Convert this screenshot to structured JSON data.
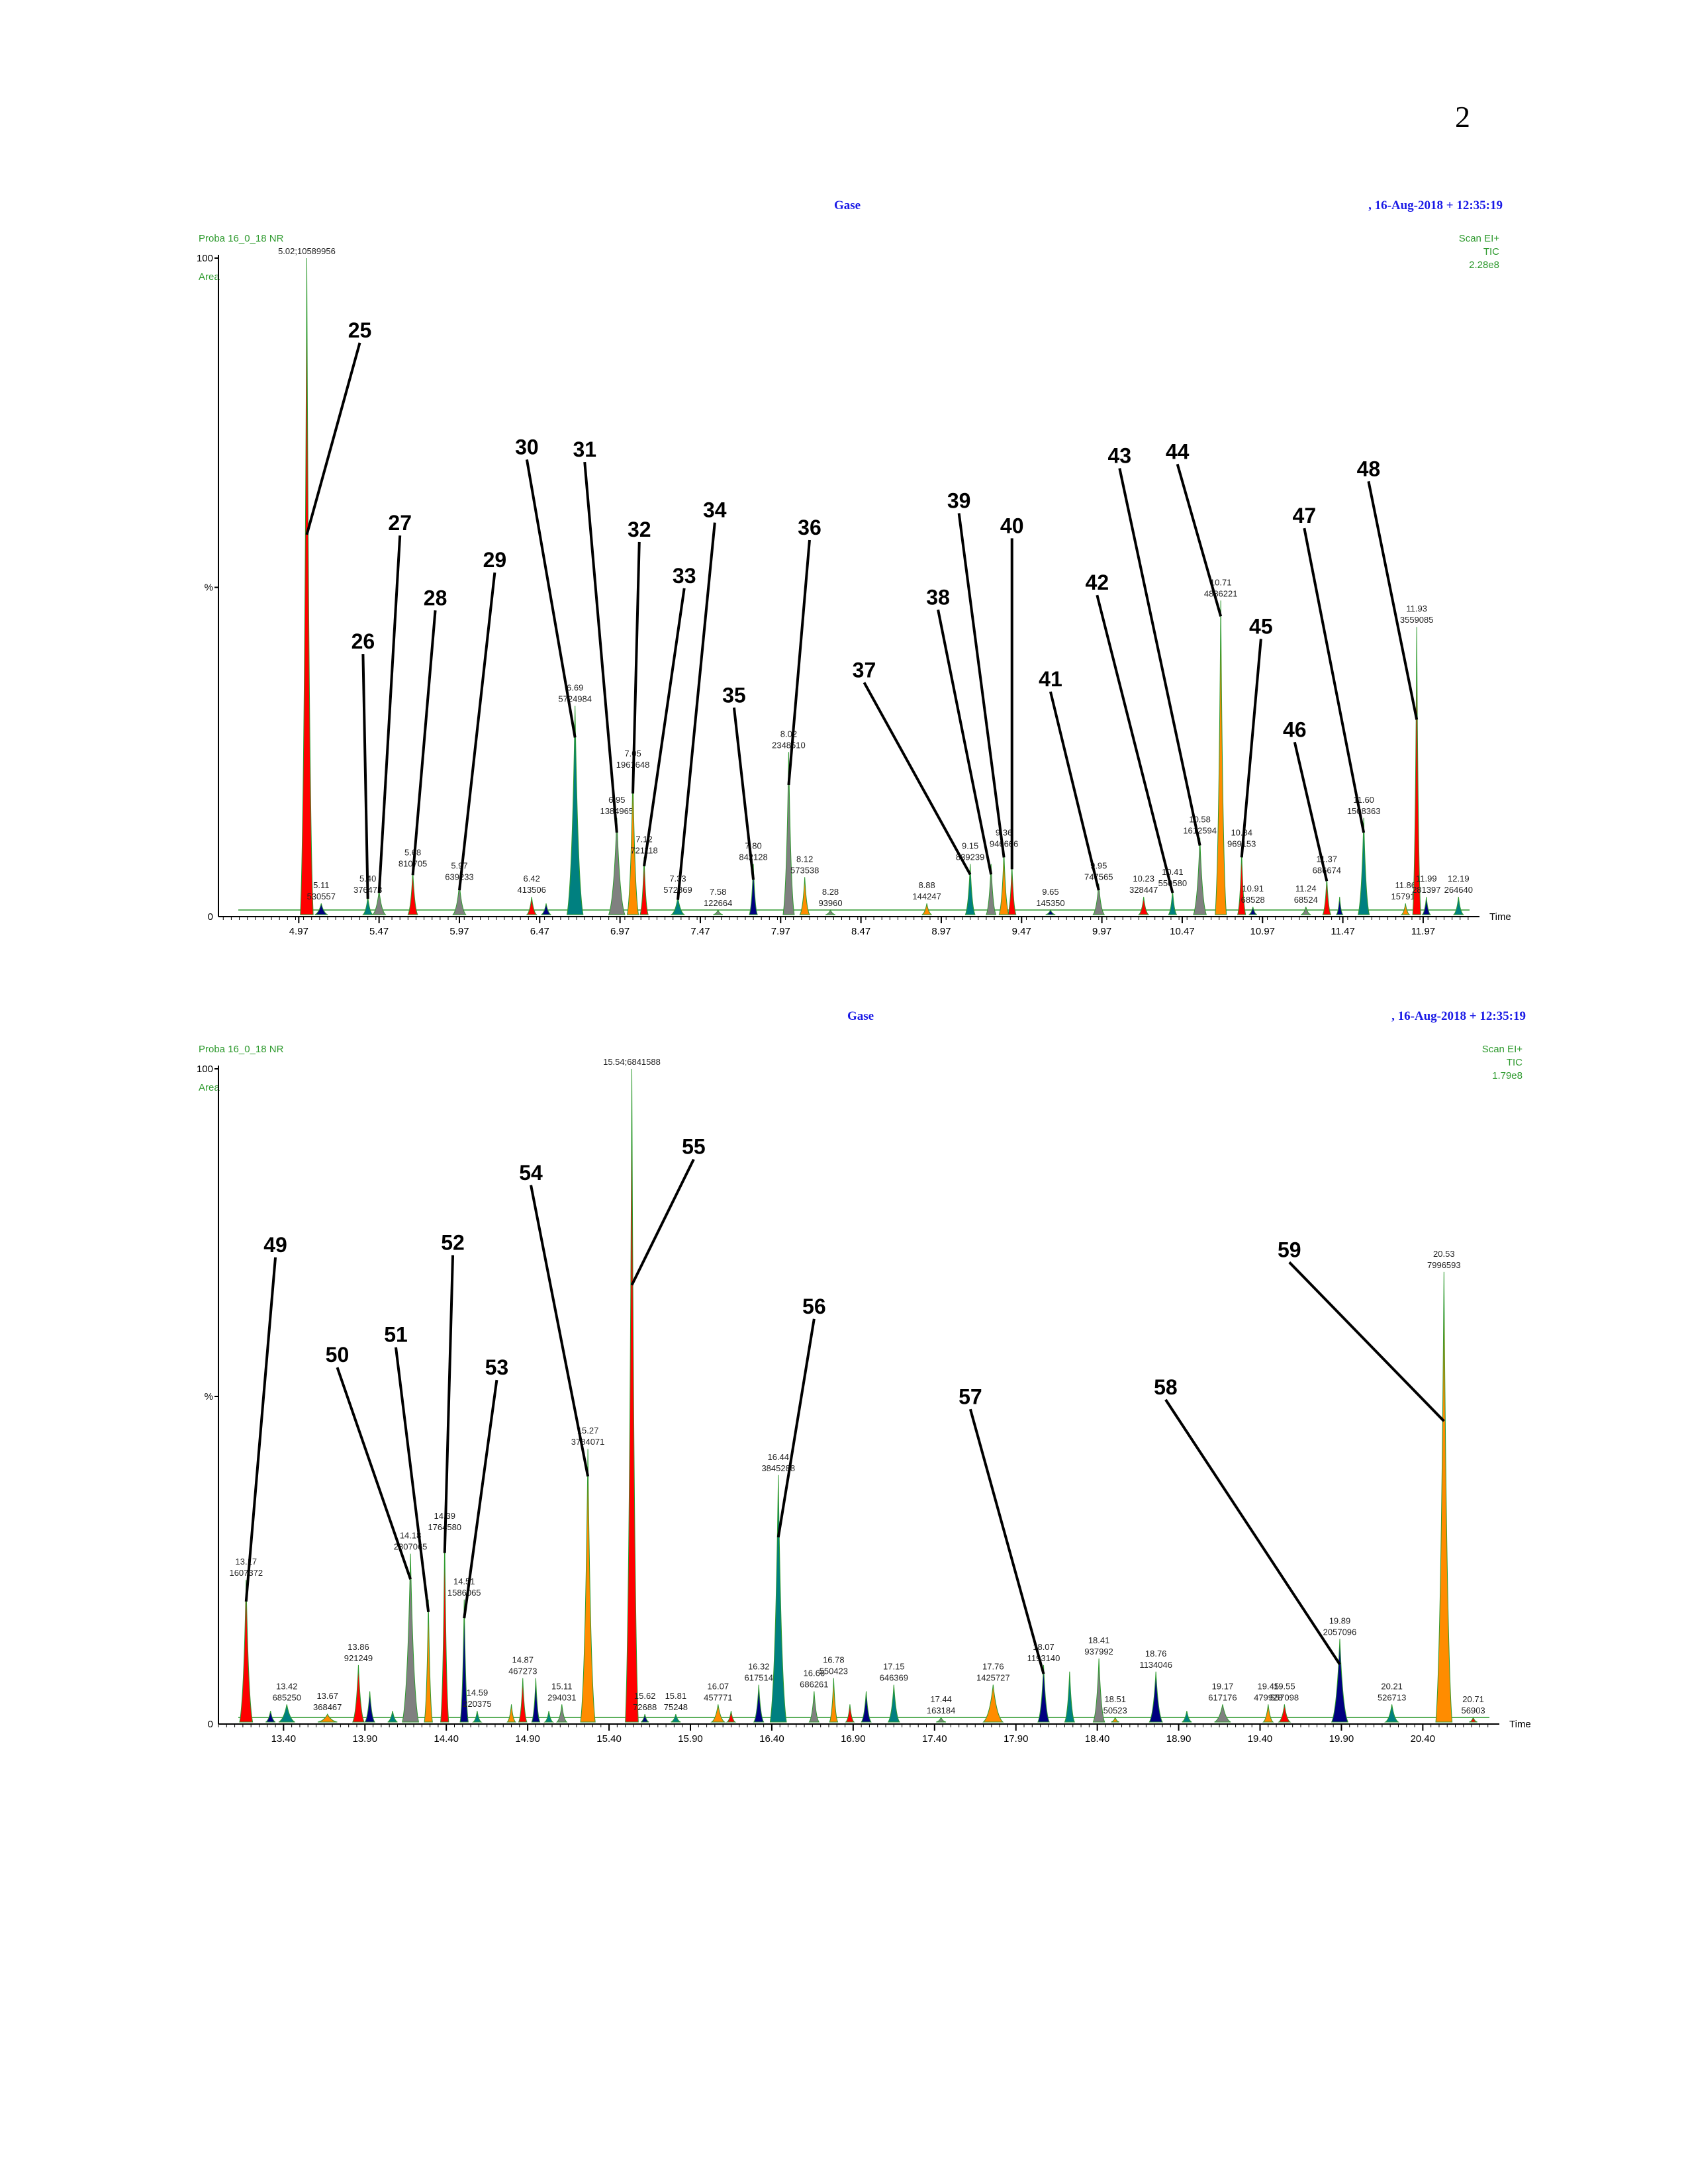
{
  "page": {
    "number": "2"
  },
  "chart_data": [
    {
      "type": "area",
      "title": "Gase",
      "date": ",  16-Aug-2018 + 12:35:19",
      "sample": "Proba 16_0_18 NR",
      "mode": "Area",
      "scan_info": [
        "Scan EI+",
        "TIC",
        "2.28e8"
      ],
      "y_top_label": "100",
      "y_mid_label": "%",
      "y_zero_label": "0",
      "xlabel": "Time",
      "xlim": [
        4.47,
        12.3
      ],
      "ylim": [
        0,
        100
      ],
      "x_ticks": [
        "4.97",
        "5.47",
        "5.97",
        "6.47",
        "6.97",
        "7.47",
        "7.97",
        "8.47",
        "8.97",
        "9.47",
        "9.97",
        "10.47",
        "10.97",
        "11.47",
        "11.97"
      ],
      "peaks": [
        {
          "rt": 5.02,
          "h": 100,
          "w": 0.08,
          "color": "#ff0000",
          "label": "5.02;10589956"
        },
        {
          "rt": 5.11,
          "h": 2,
          "w": 0.08,
          "color": "#000080",
          "label": "5.11\n530557"
        },
        {
          "rt": 5.4,
          "h": 3,
          "w": 0.06,
          "color": "#008080",
          "label": "5.40\n376473"
        },
        {
          "rt": 5.47,
          "h": 4,
          "w": 0.08,
          "color": "#808080",
          "label": ""
        },
        {
          "rt": 5.68,
          "h": 7,
          "w": 0.06,
          "color": "#ff0000",
          "label": "5.68\n810705"
        },
        {
          "rt": 5.97,
          "h": 5,
          "w": 0.08,
          "color": "#808080",
          "label": "5.97\n639233"
        },
        {
          "rt": 6.42,
          "h": 3,
          "w": 0.06,
          "color": "#ff0000",
          "label": "6.42\n413506"
        },
        {
          "rt": 6.51,
          "h": 2,
          "w": 0.06,
          "color": "#000080",
          "label": ""
        },
        {
          "rt": 6.69,
          "h": 32,
          "w": 0.1,
          "color": "#008080",
          "label": "6.69\n5724984"
        },
        {
          "rt": 6.95,
          "h": 15,
          "w": 0.1,
          "color": "#808080",
          "label": "6.95\n1384965"
        },
        {
          "rt": 7.05,
          "h": 22,
          "w": 0.07,
          "color": "#ff8c00",
          "label": "7.05\n1961648"
        },
        {
          "rt": 7.12,
          "h": 9,
          "w": 0.05,
          "color": "#ff0000",
          "label": "7.12\n721118"
        },
        {
          "rt": 7.33,
          "h": 3,
          "w": 0.08,
          "color": "#008080",
          "label": "7.33\n572869"
        },
        {
          "rt": 7.58,
          "h": 1,
          "w": 0.06,
          "color": "#808080",
          "label": "7.58\n122664"
        },
        {
          "rt": 7.8,
          "h": 8,
          "w": 0.05,
          "color": "#000080",
          "label": "7.80\n842128"
        },
        {
          "rt": 8.02,
          "h": 25,
          "w": 0.07,
          "color": "#808080",
          "label": "8.02\n2348510"
        },
        {
          "rt": 8.12,
          "h": 6,
          "w": 0.06,
          "color": "#ff8c00",
          "label": "8.12\n573538"
        },
        {
          "rt": 8.28,
          "h": 1,
          "w": 0.06,
          "color": "#808080",
          "label": "8.28\n93960"
        },
        {
          "rt": 8.88,
          "h": 2,
          "w": 0.06,
          "color": "#ff8c00",
          "label": "8.88\n144247"
        },
        {
          "rt": 9.15,
          "h": 8,
          "w": 0.06,
          "color": "#008080",
          "label": "9.15\n839239"
        },
        {
          "rt": 9.28,
          "h": 8,
          "w": 0.06,
          "color": "#808080",
          "label": ""
        },
        {
          "rt": 9.36,
          "h": 10,
          "w": 0.06,
          "color": "#ff8c00",
          "label": "9.36\n946666"
        },
        {
          "rt": 9.41,
          "h": 8,
          "w": 0.05,
          "color": "#ff0000",
          "label": ""
        },
        {
          "rt": 9.65,
          "h": 1,
          "w": 0.06,
          "color": "#000080",
          "label": "9.65\n145350"
        },
        {
          "rt": 9.95,
          "h": 5,
          "w": 0.07,
          "color": "#808080",
          "label": "9.95\n747565"
        },
        {
          "rt": 10.23,
          "h": 3,
          "w": 0.06,
          "color": "#ff0000",
          "label": "10.23\n328447"
        },
        {
          "rt": 10.41,
          "h": 4,
          "w": 0.05,
          "color": "#008080",
          "label": "10.41\n550580"
        },
        {
          "rt": 10.58,
          "h": 12,
          "w": 0.08,
          "color": "#808080",
          "label": "10.58\n1612594"
        },
        {
          "rt": 10.71,
          "h": 48,
          "w": 0.07,
          "color": "#ff8c00",
          "label": "10.71\n4886221"
        },
        {
          "rt": 10.84,
          "h": 10,
          "w": 0.05,
          "color": "#ff0000",
          "label": "10.84\n969153"
        },
        {
          "rt": 10.91,
          "h": 1.5,
          "w": 0.05,
          "color": "#000080",
          "label": "10.91\n68528"
        },
        {
          "rt": 11.24,
          "h": 1.5,
          "w": 0.06,
          "color": "#808080",
          "label": "11.24\n68524"
        },
        {
          "rt": 11.37,
          "h": 6,
          "w": 0.05,
          "color": "#ff0000",
          "label": "11.37\n686674"
        },
        {
          "rt": 11.45,
          "h": 3,
          "w": 0.04,
          "color": "#000080",
          "label": ""
        },
        {
          "rt": 11.6,
          "h": 15,
          "w": 0.07,
          "color": "#008080",
          "label": "11.60\n1508363"
        },
        {
          "rt": 11.86,
          "h": 2,
          "w": 0.05,
          "color": "#ff8c00",
          "label": "11.86\n157916"
        },
        {
          "rt": 11.93,
          "h": 44,
          "w": 0.05,
          "color": "#ff0000",
          "label": "11.93\n3559085"
        },
        {
          "rt": 11.99,
          "h": 3,
          "w": 0.05,
          "color": "#000080",
          "label": "11.99\n281397"
        },
        {
          "rt": 12.19,
          "h": 3,
          "w": 0.06,
          "color": "#008080",
          "label": "12.19\n264640"
        }
      ],
      "callouts": [
        {
          "label": "25",
          "target_rt": 5.02,
          "target_frac": 0.58,
          "dx": 0.33,
          "dy": -290
        },
        {
          "label": "26",
          "target_rt": 5.4,
          "target_frac": 0.9,
          "dx": -0.03,
          "dy": -370
        },
        {
          "label": "27",
          "target_rt": 5.47,
          "target_frac": 0.9,
          "dx": 0.13,
          "dy": -540
        },
        {
          "label": "28",
          "target_rt": 5.68,
          "target_frac": 0.9,
          "dx": 0.14,
          "dy": -400
        },
        {
          "label": "29",
          "target_rt": 5.97,
          "target_frac": 0.8,
          "dx": 0.22,
          "dy": -480
        },
        {
          "label": "30",
          "target_rt": 6.69,
          "target_frac": 0.85,
          "dx": -0.3,
          "dy": -420
        },
        {
          "label": "31",
          "target_rt": 6.95,
          "target_frac": 0.85,
          "dx": -0.2,
          "dy": -560
        },
        {
          "label": "32",
          "target_rt": 7.05,
          "target_frac": 0.85,
          "dx": 0.04,
          "dy": -380
        },
        {
          "label": "33",
          "target_rt": 7.12,
          "target_frac": 0.85,
          "dx": 0.25,
          "dy": -420
        },
        {
          "label": "34",
          "target_rt": 7.33,
          "target_frac": 0.85,
          "dx": 0.23,
          "dy": -570
        },
        {
          "label": "35",
          "target_rt": 7.8,
          "target_frac": 0.7,
          "dx": -0.12,
          "dy": -260
        },
        {
          "label": "36",
          "target_rt": 8.02,
          "target_frac": 0.8,
          "dx": 0.13,
          "dy": -370
        },
        {
          "label": "37",
          "target_rt": 9.15,
          "target_frac": 0.8,
          "dx": -0.66,
          "dy": -290
        },
        {
          "label": "38",
          "target_rt": 9.28,
          "target_frac": 0.8,
          "dx": -0.33,
          "dy": -400
        },
        {
          "label": "39",
          "target_rt": 9.36,
          "target_frac": 0.9,
          "dx": -0.28,
          "dy": -520
        },
        {
          "label": "40",
          "target_rt": 9.41,
          "target_frac": 0.9,
          "dx": 0.0,
          "dy": -500
        },
        {
          "label": "41",
          "target_rt": 9.95,
          "target_frac": 0.8,
          "dx": -0.3,
          "dy": -300
        },
        {
          "label": "42",
          "target_rt": 10.41,
          "target_frac": 0.9,
          "dx": -0.47,
          "dy": -450
        },
        {
          "label": "43",
          "target_rt": 10.58,
          "target_frac": 0.9,
          "dx": -0.5,
          "dy": -570
        },
        {
          "label": "44",
          "target_rt": 10.71,
          "target_frac": 0.95,
          "dx": -0.27,
          "dy": -230
        },
        {
          "label": "45",
          "target_rt": 10.84,
          "target_frac": 0.9,
          "dx": 0.12,
          "dy": -330
        },
        {
          "label": "46",
          "target_rt": 11.37,
          "target_frac": 0.9,
          "dx": -0.2,
          "dy": -210
        },
        {
          "label": "47",
          "target_rt": 11.6,
          "target_frac": 0.85,
          "dx": -0.37,
          "dy": -460
        },
        {
          "label": "48",
          "target_rt": 11.93,
          "target_frac": 0.68,
          "dx": -0.3,
          "dy": -360
        }
      ]
    },
    {
      "type": "area",
      "title": "Gase",
      "date": ",  16-Aug-2018 + 12:35:19",
      "sample": "Proba 16_0_18 NR",
      "mode": "Area",
      "scan_info": [
        "Scan EI+",
        "TIC",
        "1.79e8"
      ],
      "y_top_label": "100",
      "y_mid_label": "%",
      "y_zero_label": "0",
      "xlabel": "Time",
      "xlim": [
        13.0,
        20.85
      ],
      "ylim": [
        0,
        100
      ],
      "x_ticks": [
        "13.40",
        "13.90",
        "14.40",
        "14.90",
        "15.40",
        "15.90",
        "16.40",
        "16.90",
        "17.40",
        "17.90",
        "18.40",
        "18.90",
        "19.40",
        "19.90",
        "20.40"
      ],
      "peaks": [
        {
          "rt": 13.17,
          "h": 22,
          "w": 0.08,
          "color": "#ff0000",
          "label": "13.17\n1607372"
        },
        {
          "rt": 13.32,
          "h": 2,
          "w": 0.06,
          "color": "#000080",
          "label": ""
        },
        {
          "rt": 13.42,
          "h": 3,
          "w": 0.1,
          "color": "#008080",
          "label": "13.42\n685250"
        },
        {
          "rt": 13.67,
          "h": 1.5,
          "w": 0.12,
          "color": "#ff8c00",
          "label": "13.67\n368467"
        },
        {
          "rt": 13.86,
          "h": 9,
          "w": 0.07,
          "color": "#ff0000",
          "label": "13.86\n921249"
        },
        {
          "rt": 13.93,
          "h": 5,
          "w": 0.06,
          "color": "#000080",
          "label": ""
        },
        {
          "rt": 14.07,
          "h": 2,
          "w": 0.06,
          "color": "#008080",
          "label": ""
        },
        {
          "rt": 14.18,
          "h": 26,
          "w": 0.1,
          "color": "#808080",
          "label": "14.18\n2807065"
        },
        {
          "rt": 14.29,
          "h": 19,
          "w": 0.05,
          "color": "#ff8c00",
          "label": ""
        },
        {
          "rt": 14.39,
          "h": 29,
          "w": 0.05,
          "color": "#ff0000",
          "label": "14.39\n1764580"
        },
        {
          "rt": 14.51,
          "h": 19,
          "w": 0.05,
          "color": "#000080",
          "label": "14.51\n1586065"
        },
        {
          "rt": 14.59,
          "h": 2,
          "w": 0.05,
          "color": "#008080",
          "label": "14.59\n220375"
        },
        {
          "rt": 14.8,
          "h": 3,
          "w": 0.05,
          "color": "#ff8c00",
          "label": ""
        },
        {
          "rt": 14.87,
          "h": 7,
          "w": 0.05,
          "color": "#ff0000",
          "label": "14.87\n467273"
        },
        {
          "rt": 14.95,
          "h": 7,
          "w": 0.05,
          "color": "#000080",
          "label": ""
        },
        {
          "rt": 15.03,
          "h": 2,
          "w": 0.05,
          "color": "#008080",
          "label": ""
        },
        {
          "rt": 15.11,
          "h": 3,
          "w": 0.06,
          "color": "#808080",
          "label": "15.11\n294031"
        },
        {
          "rt": 15.27,
          "h": 42,
          "w": 0.09,
          "color": "#ff8c00",
          "label": "15.27\n3784071"
        },
        {
          "rt": 15.54,
          "h": 100,
          "w": 0.08,
          "color": "#ff0000",
          "label": "15.54;6841588"
        },
        {
          "rt": 15.62,
          "h": 1.5,
          "w": 0.05,
          "color": "#000080",
          "label": "15.62\n72688"
        },
        {
          "rt": 15.81,
          "h": 1.5,
          "w": 0.06,
          "color": "#008080",
          "label": "15.81\n75248"
        },
        {
          "rt": 16.07,
          "h": 3,
          "w": 0.08,
          "color": "#ff8c00",
          "label": "16.07\n457771"
        },
        {
          "rt": 16.15,
          "h": 2,
          "w": 0.05,
          "color": "#ff0000",
          "label": ""
        },
        {
          "rt": 16.32,
          "h": 6,
          "w": 0.06,
          "color": "#000080",
          "label": "16.32\n617514"
        },
        {
          "rt": 16.44,
          "h": 38,
          "w": 0.1,
          "color": "#008080",
          "label": "16.44\n3845288"
        },
        {
          "rt": 16.66,
          "h": 5,
          "w": 0.06,
          "color": "#808080",
          "label": "16.66\n686261"
        },
        {
          "rt": 16.78,
          "h": 7,
          "w": 0.05,
          "color": "#ff8c00",
          "label": "16.78\n550423"
        },
        {
          "rt": 16.88,
          "h": 3,
          "w": 0.05,
          "color": "#ff0000",
          "label": ""
        },
        {
          "rt": 16.98,
          "h": 5,
          "w": 0.06,
          "color": "#000080",
          "label": ""
        },
        {
          "rt": 17.15,
          "h": 6,
          "w": 0.07,
          "color": "#008080",
          "label": "17.15\n646369"
        },
        {
          "rt": 17.44,
          "h": 1,
          "w": 0.06,
          "color": "#808080",
          "label": "17.44\n163184"
        },
        {
          "rt": 17.76,
          "h": 6,
          "w": 0.12,
          "color": "#ff8c00",
          "label": "17.76\n1425727"
        },
        {
          "rt": 18.07,
          "h": 9,
          "w": 0.07,
          "color": "#000080",
          "label": "18.07\n1193140"
        },
        {
          "rt": 18.23,
          "h": 8,
          "w": 0.06,
          "color": "#008080",
          "label": ""
        },
        {
          "rt": 18.41,
          "h": 10,
          "w": 0.07,
          "color": "#808080",
          "label": "18.41\n937992"
        },
        {
          "rt": 18.51,
          "h": 1,
          "w": 0.05,
          "color": "#ff8c00",
          "label": "18.51\n50523"
        },
        {
          "rt": 18.76,
          "h": 8,
          "w": 0.08,
          "color": "#000080",
          "label": "18.76\n1134046"
        },
        {
          "rt": 18.95,
          "h": 2,
          "w": 0.06,
          "color": "#008080",
          "label": ""
        },
        {
          "rt": 19.17,
          "h": 3,
          "w": 0.1,
          "color": "#808080",
          "label": "19.17\n617176"
        },
        {
          "rt": 19.45,
          "h": 3,
          "w": 0.06,
          "color": "#ff8c00",
          "label": "19.45\n479928"
        },
        {
          "rt": 19.55,
          "h": 3,
          "w": 0.07,
          "color": "#ff0000",
          "label": "19.55\n557098"
        },
        {
          "rt": 19.89,
          "h": 13,
          "w": 0.1,
          "color": "#000080",
          "label": "19.89\n2057096"
        },
        {
          "rt": 20.21,
          "h": 3,
          "w": 0.08,
          "color": "#008080",
          "label": "20.21\n526713"
        },
        {
          "rt": 20.53,
          "h": 69,
          "w": 0.1,
          "color": "#ff8c00",
          "label": "20.53\n7996593"
        },
        {
          "rt": 20.71,
          "h": 1,
          "w": 0.05,
          "color": "#ff0000",
          "label": "20.71\n56903"
        }
      ],
      "callouts": [
        {
          "label": "49",
          "target_rt": 13.17,
          "target_frac": 0.85,
          "dx": 0.18,
          "dy": -520
        },
        {
          "label": "50",
          "target_rt": 14.18,
          "target_frac": 0.85,
          "dx": -0.45,
          "dy": -320
        },
        {
          "label": "51",
          "target_rt": 14.29,
          "target_frac": 0.9,
          "dx": -0.2,
          "dy": -400
        },
        {
          "label": "52",
          "target_rt": 14.39,
          "target_frac": 0.9,
          "dx": 0.05,
          "dy": -450
        },
        {
          "label": "53",
          "target_rt": 14.51,
          "target_frac": 0.85,
          "dx": 0.2,
          "dy": -360
        },
        {
          "label": "54",
          "target_rt": 15.27,
          "target_frac": 0.9,
          "dx": -0.35,
          "dy": -440
        },
        {
          "label": "55",
          "target_rt": 15.54,
          "target_frac": 0.67,
          "dx": 0.38,
          "dy": -190
        },
        {
          "label": "56",
          "target_rt": 16.44,
          "target_frac": 0.75,
          "dx": 0.22,
          "dy": -330
        },
        {
          "label": "57",
          "target_rt": 18.07,
          "target_frac": 0.85,
          "dx": -0.45,
          "dy": -400
        },
        {
          "label": "58",
          "target_rt": 19.89,
          "target_frac": 0.7,
          "dx": -1.07,
          "dy": -400
        },
        {
          "label": "59",
          "target_rt": 20.53,
          "target_frac": 0.67,
          "dx": -0.95,
          "dy": -240
        }
      ]
    }
  ]
}
